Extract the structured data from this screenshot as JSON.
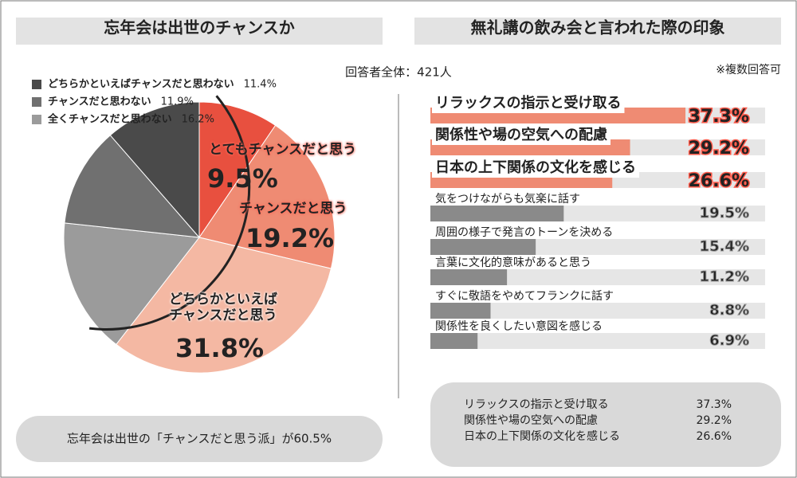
{
  "respondents": "回答者全体：421人",
  "chart_data": [
    {
      "type": "pie",
      "title": "忘年会は出世のチャンスか",
      "categories": [
        "とてもチャンスだと思う",
        "チャンスだと思う",
        "どちらかといえばチャンスだと思う",
        "全くチャンスだと思わない",
        "チャンスだと思わない",
        "どちらかといえばチャンスだと思わない"
      ],
      "values": [
        9.5,
        19.2,
        31.8,
        16.2,
        11.9,
        11.4
      ],
      "value_labels": [
        "9.5%",
        "19.2%",
        "31.8%",
        "16.2%",
        "11.9%",
        "11.4%"
      ],
      "colors": [
        "#e8503f",
        "#ef8b73",
        "#f4b8a3",
        "#9b9b9b",
        "#707070",
        "#4a4a4a"
      ],
      "annotation": "忘年会は出世の「チャンスだと思う派」が60.5%"
    },
    {
      "type": "hbar",
      "title": "無礼講の飲み会と言われた際の印象",
      "note": "※複数回答可",
      "categories": [
        "リラックスの指示と受け取る",
        "関係性や場の空気への配慮",
        "日本の上下関係の文化を感じる",
        "気をつけながらも気楽に話す",
        "周囲の様子で発言のトーンを決める",
        "言葉に文化的意味があると思う",
        "すぐに敬語をやめてフランクに話す",
        "関係性を良くしたい意図を感じる"
      ],
      "values": [
        37.3,
        29.2,
        26.6,
        19.5,
        15.4,
        11.2,
        8.8,
        6.9
      ],
      "value_labels": [
        "37.3%",
        "29.2%",
        "26.6%",
        "19.5%",
        "15.4%",
        "11.2%",
        "8.8%",
        "6.9%"
      ],
      "colors": [
        "#ef8b73",
        "#ef8b73",
        "#ef8b73",
        "#8a8a8a",
        "#8a8a8a",
        "#8a8a8a",
        "#8a8a8a",
        "#8a8a8a"
      ]
    }
  ]
}
